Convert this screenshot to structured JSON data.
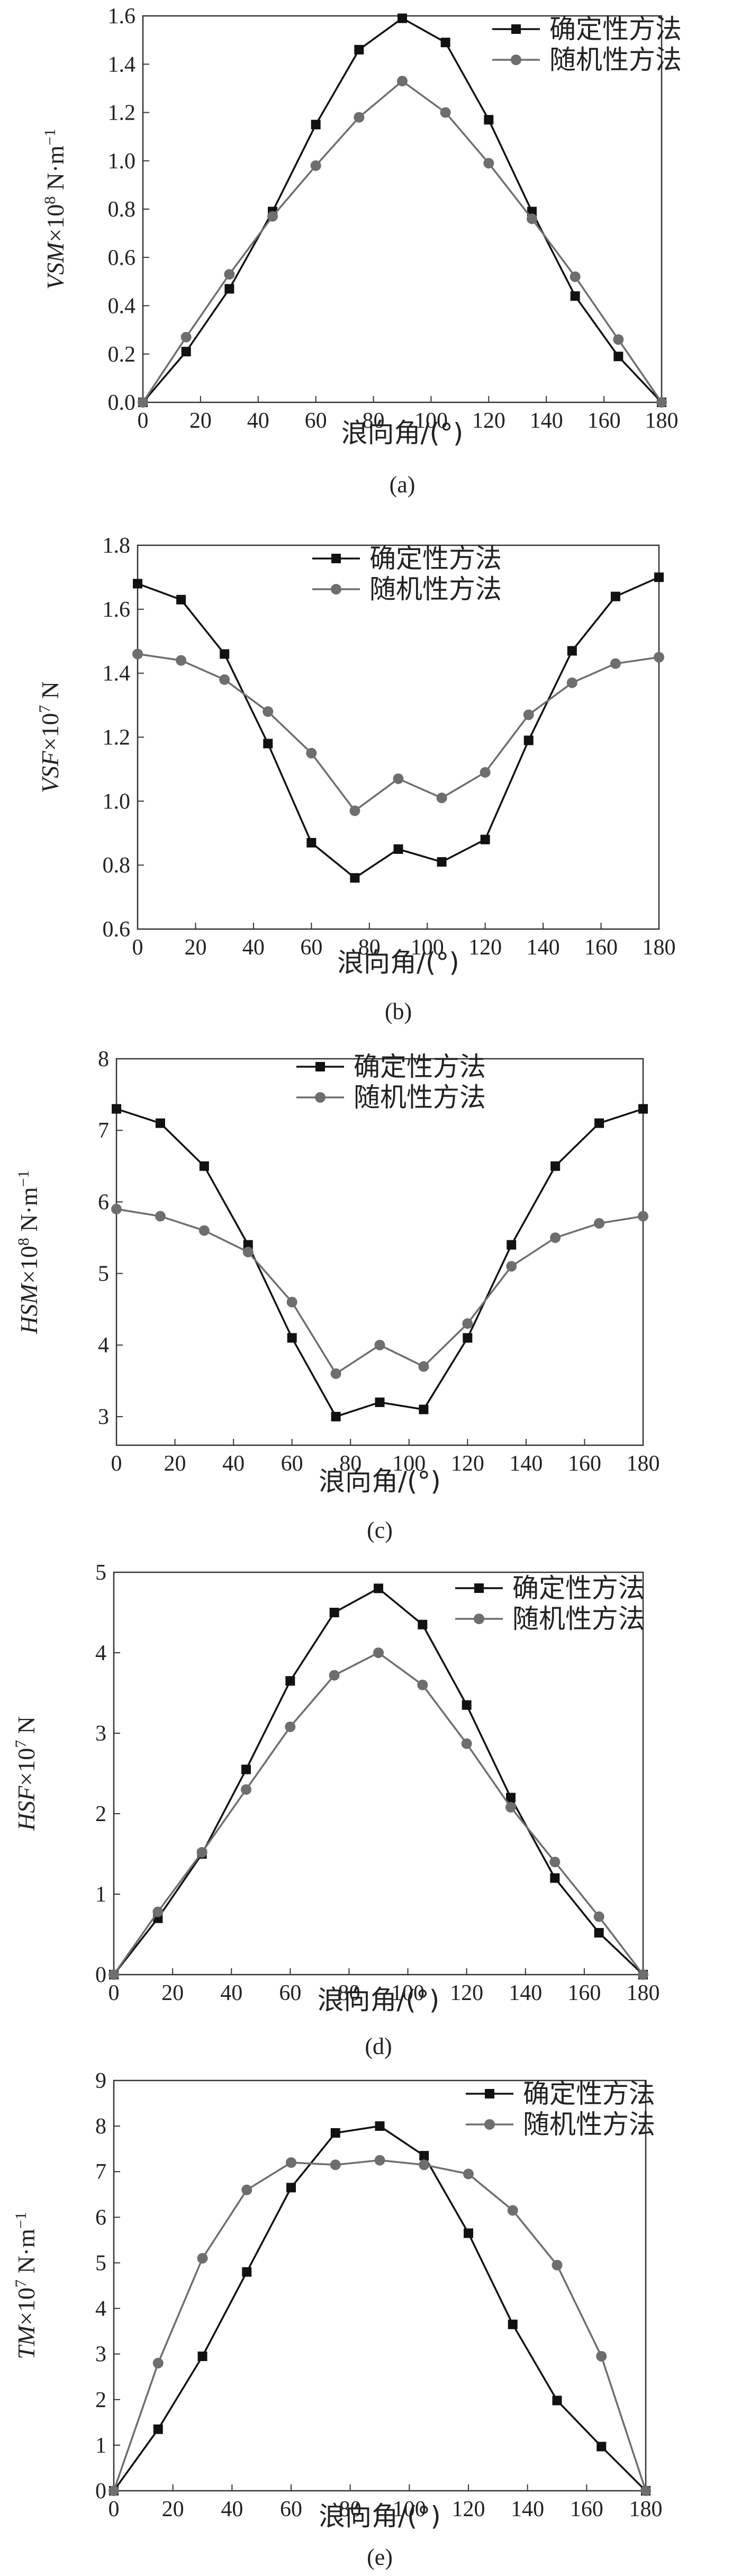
{
  "colors": {
    "deterministic": "#111111",
    "random": "#6e6e6e",
    "axis": "#333333"
  },
  "chart_data": [
    {
      "type": "line",
      "caption": "(a)",
      "ylabel_parts": [
        "VSM",
        "×10",
        "8",
        " N·m",
        "−1"
      ],
      "xlabel": "浪向角/(°)",
      "x": [
        0,
        15,
        30,
        45,
        60,
        75,
        90,
        105,
        120,
        135,
        150,
        165,
        180
      ],
      "xticks": [
        "0",
        "20",
        "40",
        "60",
        "80",
        "100",
        "120",
        "140",
        "160",
        "180"
      ],
      "yticks": [
        "0.0",
        "0.2",
        "0.4",
        "0.6",
        "0.8",
        "1.0",
        "1.2",
        "1.4",
        "1.6"
      ],
      "ylim": [
        0,
        1.6
      ],
      "xlim": [
        0,
        180
      ],
      "legend_position": "top-right",
      "series": [
        {
          "name": "确定性方法",
          "marker": "square",
          "values": [
            0,
            0.21,
            0.47,
            0.79,
            1.15,
            1.46,
            1.59,
            1.49,
            1.17,
            0.79,
            0.44,
            0.19,
            0
          ]
        },
        {
          "name": "随机性方法",
          "marker": "circle",
          "values": [
            0,
            0.27,
            0.53,
            0.77,
            0.98,
            1.18,
            1.33,
            1.2,
            0.99,
            0.76,
            0.52,
            0.26,
            0
          ]
        }
      ]
    },
    {
      "type": "line",
      "caption": "(b)",
      "ylabel_parts": [
        "VSF",
        "×10",
        "7",
        " N",
        ""
      ],
      "xlabel": "浪向角/(°)",
      "x": [
        0,
        15,
        30,
        45,
        60,
        75,
        90,
        105,
        120,
        135,
        150,
        165,
        180
      ],
      "xticks": [
        "0",
        "20",
        "40",
        "60",
        "80",
        "100",
        "120",
        "140",
        "160",
        "180"
      ],
      "yticks": [
        "0.6",
        "0.8",
        "1.0",
        "1.2",
        "1.4",
        "1.6",
        "1.8"
      ],
      "ylim": [
        0.6,
        1.8
      ],
      "xlim": [
        0,
        180
      ],
      "legend_position": "top-center",
      "series": [
        {
          "name": "确定性方法",
          "marker": "square",
          "values": [
            1.68,
            1.63,
            1.46,
            1.18,
            0.87,
            0.76,
            0.85,
            0.81,
            0.88,
            1.19,
            1.47,
            1.64,
            1.7
          ]
        },
        {
          "name": "随机性方法",
          "marker": "circle",
          "values": [
            1.46,
            1.44,
            1.38,
            1.28,
            1.15,
            0.97,
            1.07,
            1.01,
            1.09,
            1.27,
            1.37,
            1.43,
            1.45
          ]
        }
      ]
    },
    {
      "type": "line",
      "caption": "(c)",
      "ylabel_parts": [
        "HSM",
        "×10",
        "8",
        " N·m",
        "−1"
      ],
      "xlabel": "浪向角/(°)",
      "x": [
        0,
        15,
        30,
        45,
        60,
        75,
        90,
        105,
        120,
        135,
        150,
        165,
        180
      ],
      "xticks": [
        "0",
        "20",
        "40",
        "60",
        "80",
        "100",
        "120",
        "140",
        "160",
        "180"
      ],
      "yticks": [
        "3",
        "4",
        "5",
        "6",
        "7",
        "8"
      ],
      "ylim": [
        2.6,
        8
      ],
      "xlim": [
        0,
        180
      ],
      "legend_position": "top-center",
      "series": [
        {
          "name": "确定性方法",
          "marker": "square",
          "values": [
            7.3,
            7.1,
            6.5,
            5.4,
            4.1,
            3.0,
            3.2,
            3.1,
            4.1,
            5.4,
            6.5,
            7.1,
            7.3
          ]
        },
        {
          "name": "随机性方法",
          "marker": "circle",
          "values": [
            5.9,
            5.8,
            5.6,
            5.3,
            4.6,
            3.6,
            4.0,
            3.7,
            4.3,
            5.1,
            5.5,
            5.7,
            5.8
          ]
        }
      ]
    },
    {
      "type": "line",
      "caption": "(d)",
      "ylabel_parts": [
        "HSF",
        "×10",
        "7",
        " N",
        ""
      ],
      "xlabel": "浪向角/(°)",
      "x": [
        0,
        15,
        30,
        45,
        60,
        75,
        90,
        105,
        120,
        135,
        150,
        165,
        180
      ],
      "xticks": [
        "0",
        "20",
        "40",
        "60",
        "80",
        "100",
        "120",
        "140",
        "160",
        "180"
      ],
      "yticks": [
        "0",
        "1",
        "2",
        "3",
        "4",
        "5"
      ],
      "ylim": [
        0,
        5
      ],
      "xlim": [
        0,
        180
      ],
      "legend_position": "top-right",
      "series": [
        {
          "name": "确定性方法",
          "marker": "square",
          "values": [
            0,
            0.7,
            1.5,
            2.55,
            3.65,
            4.5,
            4.8,
            4.35,
            3.35,
            2.2,
            1.2,
            0.52,
            0
          ]
        },
        {
          "name": "随机性方法",
          "marker": "circle",
          "values": [
            0,
            0.78,
            1.52,
            2.3,
            3.08,
            3.72,
            4.0,
            3.6,
            2.87,
            2.08,
            1.4,
            0.72,
            0
          ]
        }
      ]
    },
    {
      "type": "line",
      "caption": "(e)",
      "ylabel_parts": [
        "TM",
        "×10",
        "7",
        " N·m",
        "−1"
      ],
      "xlabel": "浪向角/(°)",
      "x": [
        0,
        15,
        30,
        45,
        60,
        75,
        90,
        105,
        120,
        135,
        150,
        165,
        180
      ],
      "xticks": [
        "0",
        "20",
        "40",
        "60",
        "80",
        "100",
        "120",
        "140",
        "160",
        "180"
      ],
      "yticks": [
        "0",
        "1",
        "2",
        "3",
        "4",
        "5",
        "6",
        "7",
        "8",
        "9"
      ],
      "ylim": [
        0,
        9
      ],
      "xlim": [
        0,
        180
      ],
      "legend_position": "top-right",
      "series": [
        {
          "name": "确定性方法",
          "marker": "square",
          "values": [
            0,
            1.35,
            2.95,
            4.8,
            6.65,
            7.85,
            8.0,
            7.35,
            5.65,
            3.65,
            1.98,
            0.97,
            0
          ]
        },
        {
          "name": "随机性方法",
          "marker": "circle",
          "values": [
            0,
            2.8,
            5.1,
            6.6,
            7.2,
            7.15,
            7.25,
            7.15,
            6.95,
            6.15,
            4.95,
            2.95,
            0
          ]
        }
      ]
    }
  ]
}
